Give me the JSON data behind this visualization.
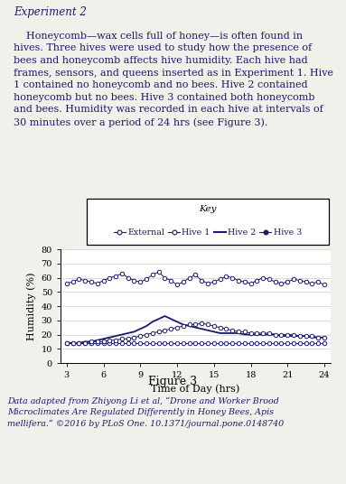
{
  "title_text": "Experiment 2",
  "paragraph_first": "    Honeycomb—wax cells full of honey—is often found in\nhives. Three hives were used to study how the presence of\nbees and honeycomb affects hive humidity. Each hive had\nframes, sensors, and queens inserted as in Experiment 1. Hive\n1 contained no honeycomb and no bees. Hive 2 contained\nhoneycomb but no bees. Hive 3 contained both honeycomb\nand bees. Humidity was recorded in each hive at intervals of\n30 minutes over a period of 24 hrs (see Figure 3).",
  "footnote": "Data adapted from Zhiyong Li et al, “Drone and Worker Brood\nMicroclimates Are Regulated Differently in Honey Bees, Apis\nmellifera.” ©2016 by PLoS One. 10.1371/journal.pone.0148740",
  "figure_label": "Figure 3",
  "key_title": "Key",
  "xlabel": "Time of Day (hrs)",
  "ylabel": "Humidity (%)",
  "ylim": [
    0,
    80
  ],
  "xticks": [
    3,
    6,
    9,
    12,
    15,
    18,
    21,
    24
  ],
  "yticks": [
    0,
    10,
    20,
    30,
    40,
    50,
    60,
    70,
    80
  ],
  "bg_color": "#f2f0ea",
  "time_x": [
    3,
    3.5,
    4,
    4.5,
    5,
    5.5,
    6,
    6.5,
    7,
    7.5,
    8,
    8.5,
    9,
    9.5,
    10,
    10.5,
    11,
    11.5,
    12,
    12.5,
    13,
    13.5,
    14,
    14.5,
    15,
    15.5,
    16,
    16.5,
    17,
    17.5,
    18,
    18.5,
    19,
    19.5,
    20,
    20.5,
    21,
    21.5,
    22,
    22.5,
    23,
    23.5,
    24
  ],
  "external_humidity": [
    56,
    57,
    59,
    58,
    57,
    56,
    58,
    60,
    61,
    63,
    60,
    58,
    57,
    59,
    62,
    64,
    60,
    58,
    55,
    57,
    60,
    62,
    58,
    56,
    57,
    59,
    61,
    60,
    58,
    57,
    56,
    58,
    60,
    59,
    57,
    56,
    57,
    59,
    58,
    57,
    56,
    57,
    55
  ],
  "hive1_humidity": [
    14,
    14,
    14,
    14,
    14,
    14,
    14,
    14,
    14,
    14,
    14,
    14,
    14,
    14,
    14,
    14,
    14,
    14,
    14,
    14,
    14,
    14,
    14,
    14,
    14,
    14,
    14,
    14,
    14,
    14,
    14,
    14,
    14,
    14,
    14,
    14,
    14,
    14,
    14,
    14,
    14,
    14,
    14
  ],
  "hive2_humidity": [
    14,
    14,
    14,
    15,
    15,
    16,
    17,
    18,
    19,
    20,
    21,
    22,
    24,
    26,
    29,
    31,
    33,
    31,
    29,
    27,
    26,
    25,
    24,
    23,
    22,
    21,
    21,
    21,
    21,
    20,
    20,
    20,
    20,
    20,
    20,
    19,
    19,
    19,
    19,
    19,
    18,
    18,
    18
  ],
  "hive3_humidity": [
    14,
    14,
    14,
    14,
    15,
    15,
    15,
    16,
    16,
    17,
    17,
    18,
    19,
    20,
    21,
    22,
    23,
    24,
    25,
    26,
    27,
    27,
    28,
    27,
    26,
    25,
    24,
    23,
    22,
    22,
    21,
    21,
    21,
    21,
    20,
    20,
    20,
    20,
    19,
    19,
    19,
    18,
    18
  ],
  "line_color": "#1a1a6e"
}
